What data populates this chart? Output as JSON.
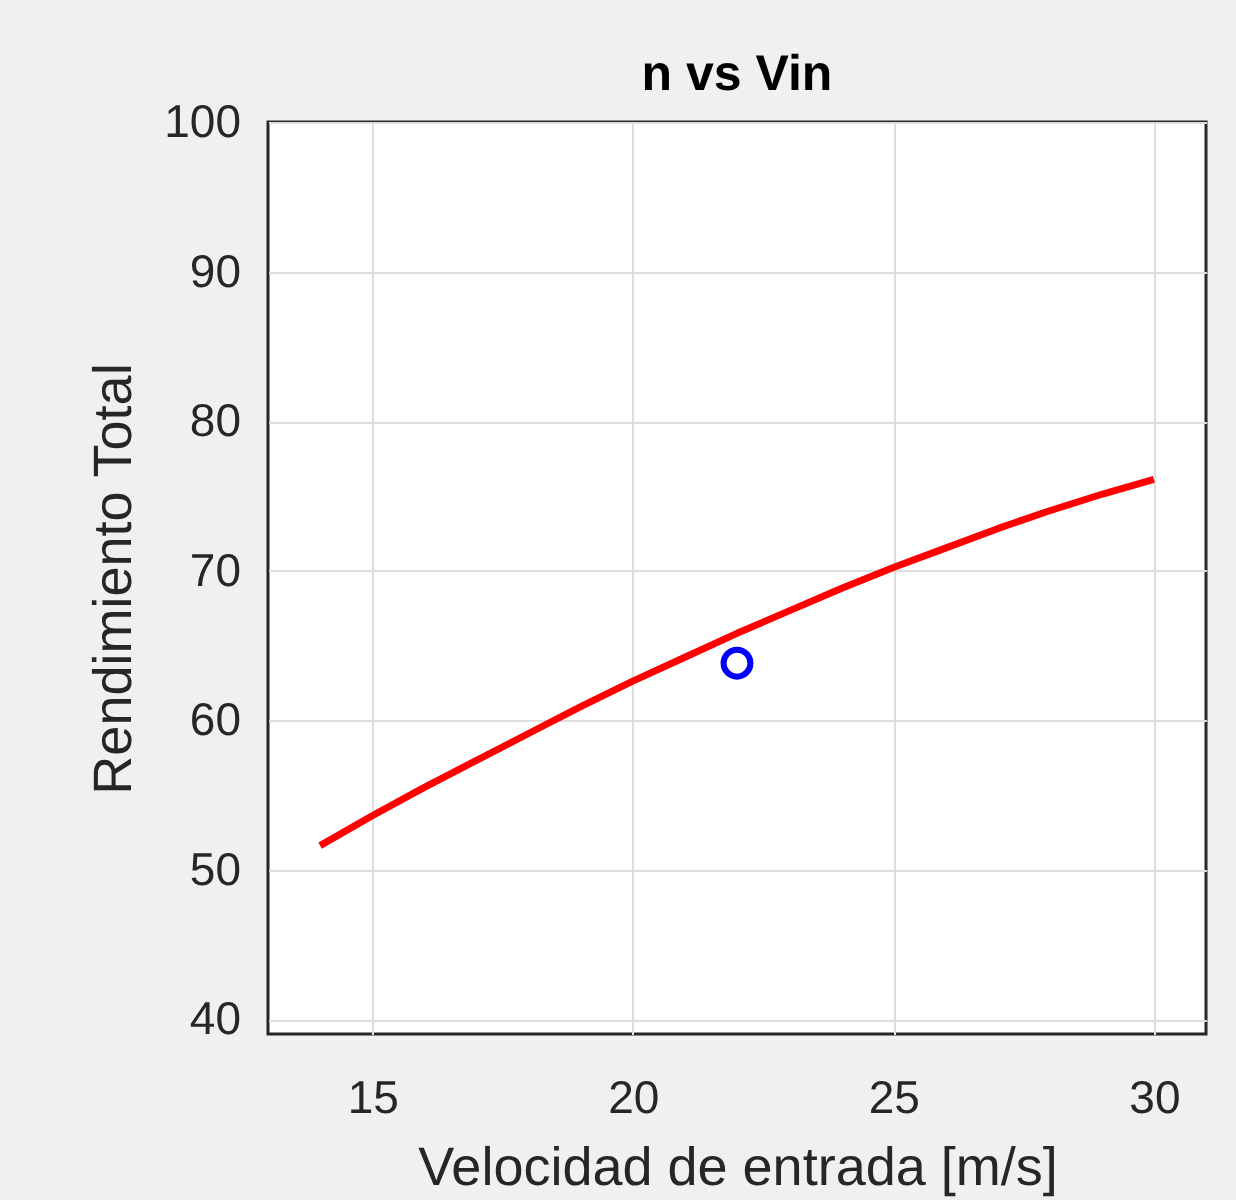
{
  "chart_data": {
    "type": "line",
    "title": "n vs Vin",
    "xlabel": "Velocidad de entrada [m/s]",
    "ylabel": "Rendimiento Total",
    "xlim": [
      13,
      31
    ],
    "ylim": [
      39,
      100
    ],
    "xticks": [
      15,
      20,
      25,
      30
    ],
    "yticks": [
      40,
      50,
      60,
      70,
      80,
      90,
      100
    ],
    "grid": true,
    "series": [
      {
        "color": "#ff0000",
        "x": [
          14,
          15,
          16,
          17,
          18,
          19,
          20,
          21,
          22,
          23,
          24,
          25,
          26,
          27,
          28,
          29,
          30
        ],
        "values": [
          51.6,
          53.6,
          55.5,
          57.3,
          59.1,
          60.9,
          62.6,
          64.2,
          65.8,
          67.3,
          68.8,
          70.2,
          71.5,
          72.8,
          74.0,
          75.1,
          76.1
        ]
      },
      {
        "type": "scatter",
        "color": "#0000ff",
        "x": [
          22
        ],
        "values": [
          63.8
        ],
        "marker": "circle"
      }
    ]
  }
}
